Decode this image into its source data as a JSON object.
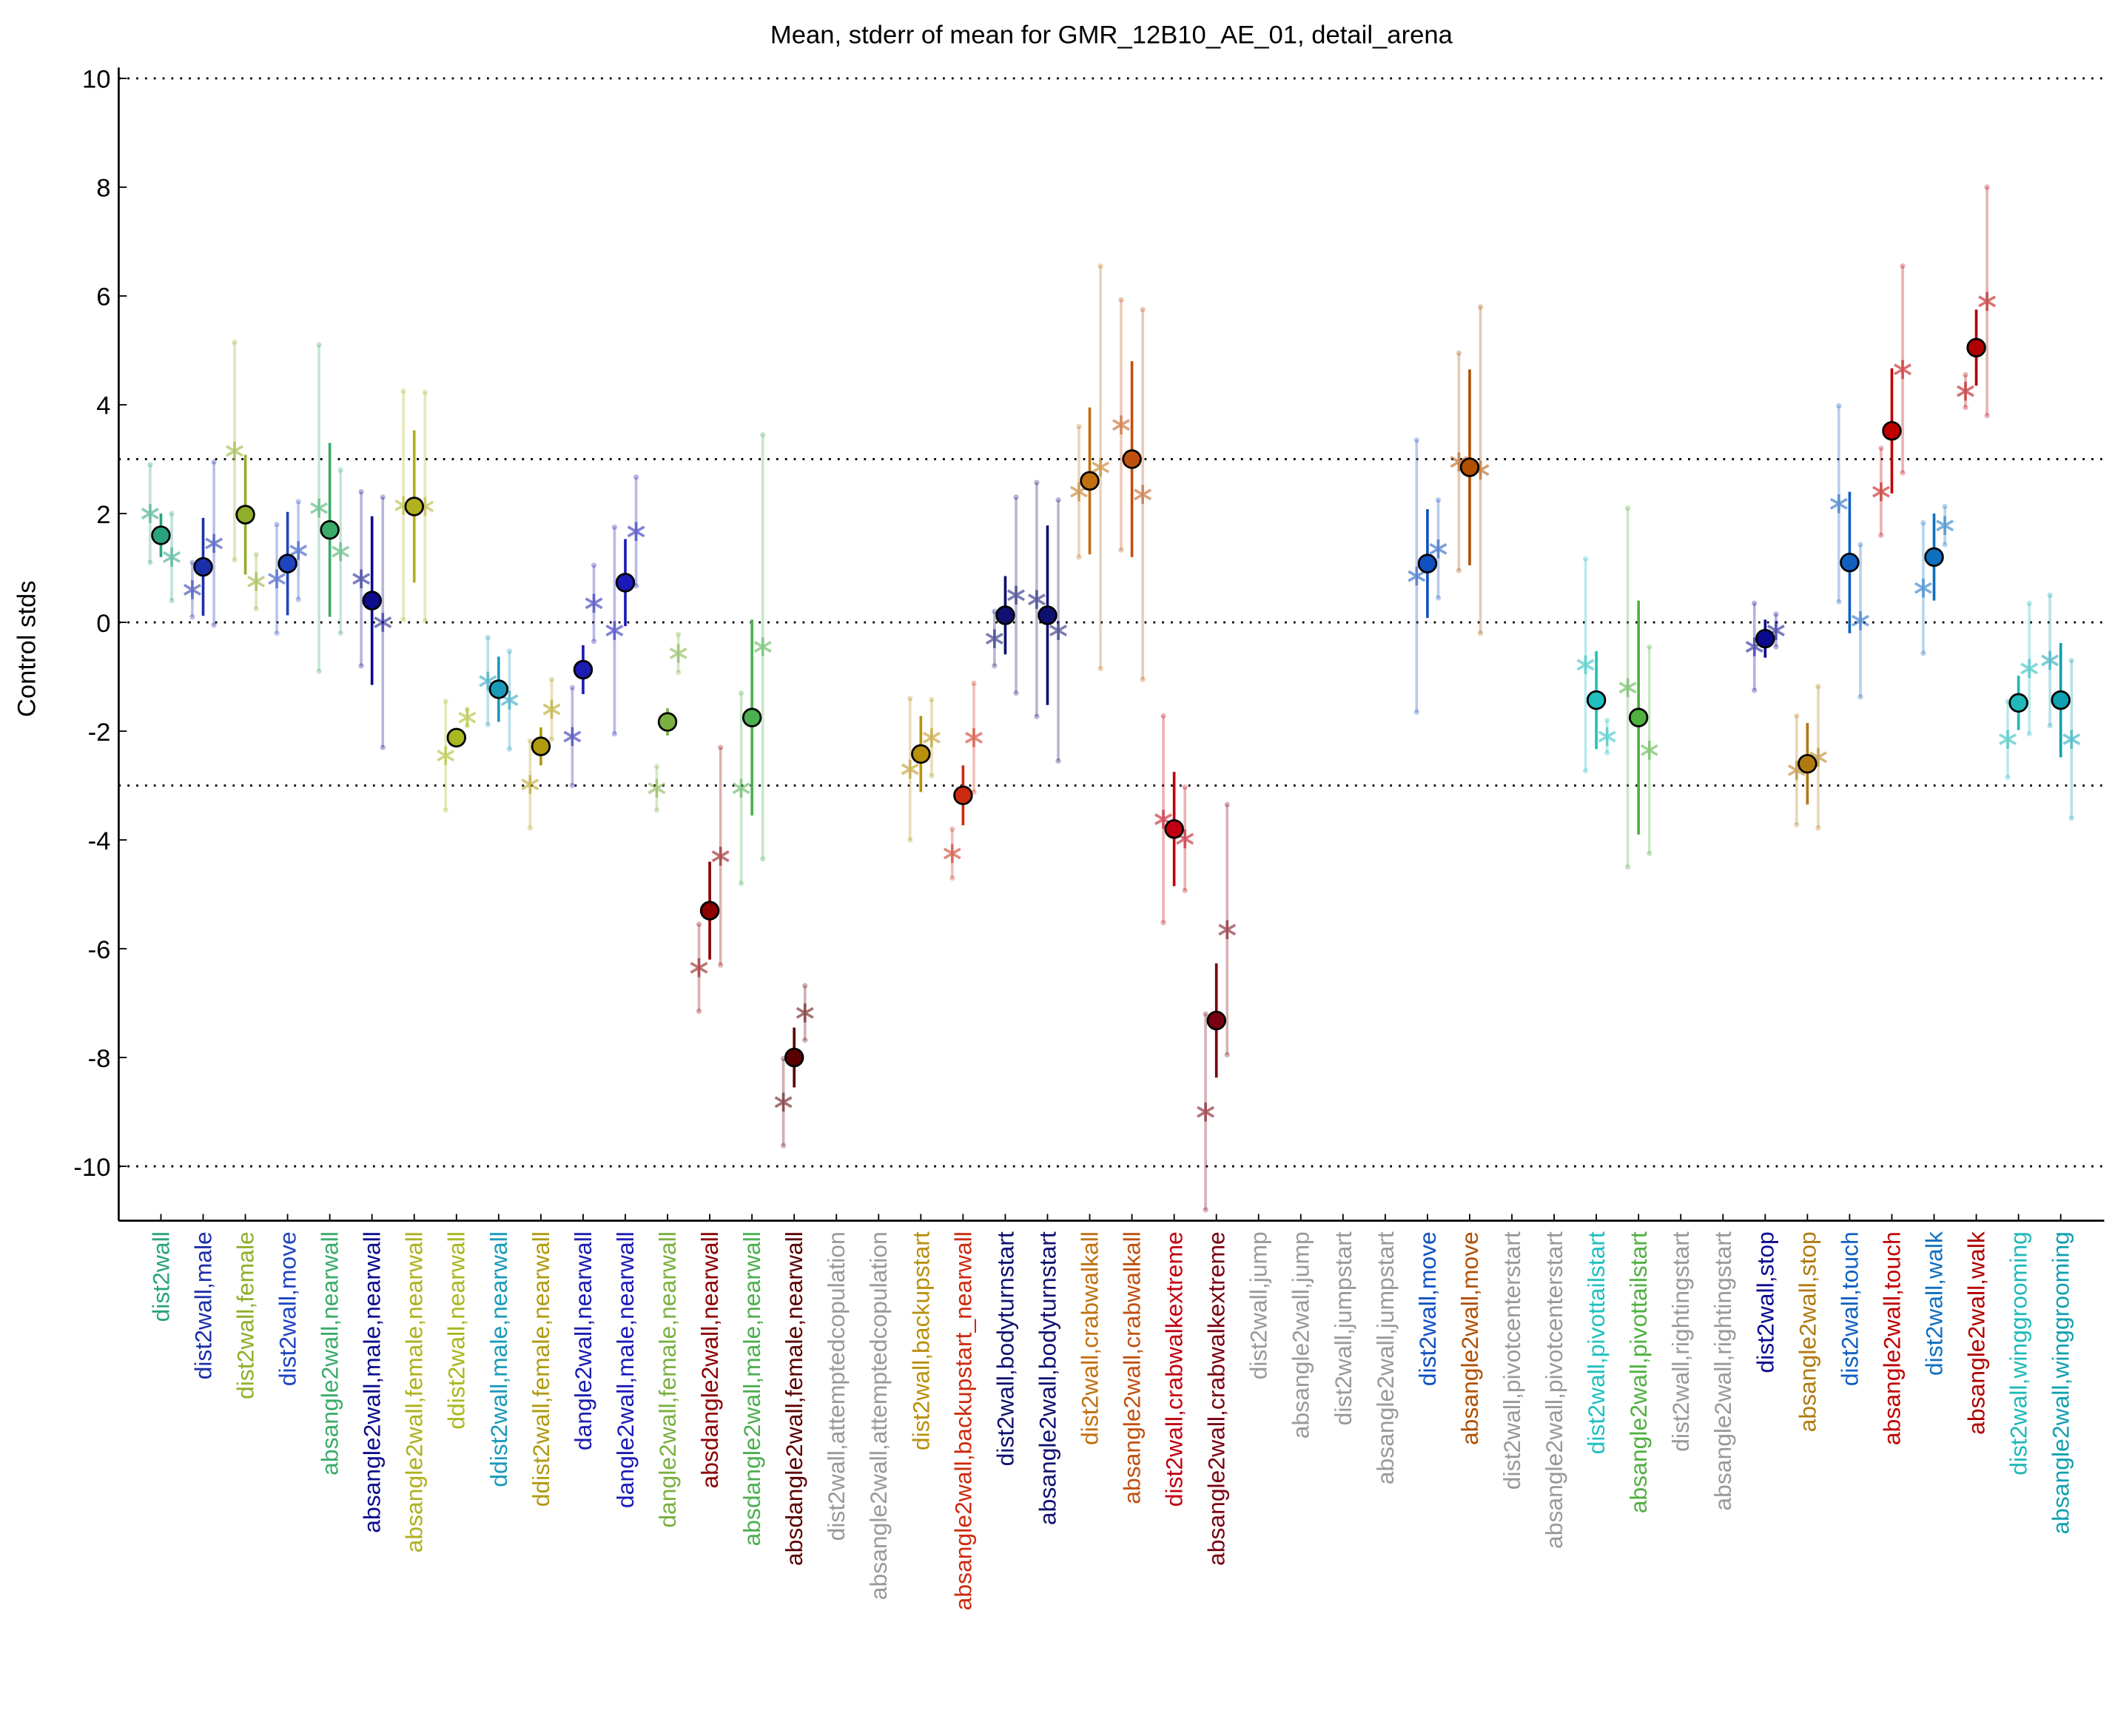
{
  "chart_data": {
    "type": "errorbar",
    "title": "Mean, stderr of mean for GMR_12B10_AE_01, detail_arena",
    "ylabel": "Control stds",
    "ylim": [
      -11,
      10.2
    ],
    "yticks": [
      -10,
      -8,
      -6,
      -4,
      -2,
      0,
      2,
      4,
      6,
      8,
      10
    ],
    "hlines": [
      10,
      3,
      0,
      -3,
      -10
    ],
    "categories": [
      "dist2wall",
      "dist2wall,male",
      "dist2wall,female",
      "dist2wall,move",
      "absangle2wall,nearwall",
      "absangle2wall,male,nearwall",
      "absangle2wall,female,nearwall",
      "ddist2wall,nearwall",
      "ddist2wall,male,nearwall",
      "ddist2wall,female,nearwall",
      "dangle2wall,nearwall",
      "dangle2wall,male,nearwall",
      "dangle2wall,female,nearwall",
      "absdangle2wall,nearwall",
      "absdangle2wall,male,nearwall",
      "absdangle2wall,female,nearwall",
      "dist2wall,attemptedcopulation",
      "absangle2wall,attemptedcopulation",
      "dist2wall,backupstart",
      "absangle2wall,backupstart_nearwall",
      "dist2wall,bodyturnstart",
      "absangle2wall,bodyturnstart",
      "dist2wall,crabwalkall",
      "absangle2wall,crabwalkall",
      "dist2wall,crabwalkextreme",
      "absangle2wall,crabwalkextreme",
      "dist2wall,jump",
      "absangle2wall,jump",
      "dist2wall,jumpstart",
      "absangle2wall,jumpstart",
      "dist2wall,move",
      "absangle2wall,move",
      "dist2wall,pivotcenterstart",
      "absangle2wall,pivotcenterstart",
      "dist2wall,pivottailstart",
      "absangle2wall,pivottailstart",
      "dist2wall,rightingstart",
      "absangle2wall,rightingstart",
      "dist2wall,stop",
      "absangle2wall,stop",
      "dist2wall,touch",
      "absangle2wall,touch",
      "dist2wall,walk",
      "absangle2wall,walk",
      "dist2wall,winggrooming",
      "absangle2wall,winggrooming"
    ],
    "colors": [
      "#2aa37f",
      "#1c2fa8",
      "#8fae2a",
      "#1f44c0",
      "#3aab6a",
      "#0c0c8c",
      "#b0b020",
      "#a8b820",
      "#1a9ab8",
      "#b09a10",
      "#1c1cb0",
      "#1a1ab8",
      "#7ab040",
      "#8b0000",
      "#4caf50",
      "#5a0000",
      "#999999",
      "#999999",
      "#b8900c",
      "#cc2a10",
      "#101070",
      "#101070",
      "#c07010",
      "#c05010",
      "#c00010",
      "#780010",
      "#999999",
      "#999999",
      "#999999",
      "#999999",
      "#1050c0",
      "#b05000",
      "#999999",
      "#999999",
      "#20c0c0",
      "#50b040",
      "#999999",
      "#999999",
      "#0a0a90",
      "#b07a10",
      "#1060c0",
      "#c00000",
      "#1070c0",
      "#b00000",
      "#20b8b8",
      "#10a0b0"
    ],
    "mean": [
      1.6,
      1.02,
      1.98,
      1.08,
      1.7,
      0.4,
      2.13,
      -2.12,
      -1.23,
      -2.28,
      -0.87,
      0.73,
      -1.83,
      -5.3,
      -1.75,
      -8.0,
      null,
      null,
      -2.42,
      -3.18,
      0.13,
      0.13,
      2.6,
      3.0,
      -3.8,
      -7.32,
      null,
      null,
      null,
      null,
      1.08,
      2.85,
      null,
      null,
      -1.43,
      -1.75,
      null,
      null,
      -0.3,
      -2.6,
      1.1,
      3.52,
      1.2,
      5.05,
      -1.48,
      -1.43
    ],
    "sem": [
      0.4,
      0.9,
      1.1,
      0.95,
      1.6,
      1.55,
      1.4,
      0.15,
      0.6,
      0.35,
      0.45,
      0.8,
      0.25,
      0.9,
      1.8,
      0.55,
      null,
      null,
      0.7,
      0.55,
      0.72,
      1.65,
      1.35,
      1.8,
      1.05,
      1.05,
      null,
      null,
      null,
      null,
      1.0,
      1.8,
      null,
      null,
      0.9,
      2.15,
      null,
      null,
      0.35,
      0.75,
      1.3,
      1.15,
      0.8,
      0.7,
      0.5,
      1.05
    ],
    "male": [
      2.0,
      0.6,
      3.15,
      0.8,
      2.1,
      0.8,
      2.15,
      -2.45,
      -1.08,
      -2.98,
      -2.1,
      -0.15,
      -3.05,
      -6.35,
      -3.05,
      -8.82,
      null,
      null,
      -2.7,
      -4.25,
      -0.3,
      0.42,
      2.4,
      3.63,
      -3.62,
      -9.0,
      null,
      null,
      null,
      null,
      0.85,
      2.95,
      null,
      null,
      -0.78,
      -1.2,
      null,
      null,
      -0.45,
      -2.72,
      2.18,
      2.4,
      0.63,
      4.25,
      -2.15,
      -0.7
    ],
    "male_err": [
      0.9,
      0.5,
      2.0,
      1.0,
      3.0,
      1.6,
      2.1,
      1.0,
      0.8,
      0.8,
      0.9,
      1.9,
      0.4,
      0.8,
      1.75,
      0.8,
      null,
      null,
      1.3,
      0.45,
      0.5,
      2.15,
      1.2,
      2.3,
      1.9,
      1.8,
      null,
      null,
      null,
      null,
      2.5,
      2.0,
      null,
      null,
      1.95,
      3.3,
      null,
      null,
      0.8,
      1.0,
      1.8,
      0.8,
      1.2,
      0.3,
      0.7,
      1.2
    ],
    "female": [
      1.2,
      1.45,
      0.75,
      1.32,
      1.3,
      0.0,
      2.13,
      -1.75,
      -1.43,
      -1.6,
      0.35,
      1.67,
      -0.57,
      -4.3,
      -0.45,
      -7.18,
      null,
      null,
      -2.12,
      -2.12,
      0.5,
      -0.15,
      2.85,
      2.35,
      -3.98,
      -5.65,
      null,
      null,
      null,
      null,
      1.35,
      2.8,
      null,
      null,
      -2.1,
      -2.35,
      null,
      null,
      -0.15,
      -2.48,
      0.03,
      4.65,
      1.78,
      5.9,
      -0.85,
      -2.15
    ],
    "female_err": [
      0.8,
      1.5,
      0.5,
      0.9,
      1.5,
      2.3,
      2.1,
      0.15,
      0.9,
      0.55,
      0.7,
      1.0,
      0.35,
      2.0,
      3.9,
      0.5,
      null,
      null,
      0.7,
      1.0,
      1.8,
      2.4,
      3.7,
      3.4,
      0.95,
      2.3,
      null,
      null,
      null,
      null,
      0.9,
      3.0,
      null,
      null,
      0.3,
      1.9,
      null,
      null,
      0.3,
      1.3,
      1.4,
      1.9,
      0.35,
      2.1,
      1.2,
      1.45
    ]
  }
}
